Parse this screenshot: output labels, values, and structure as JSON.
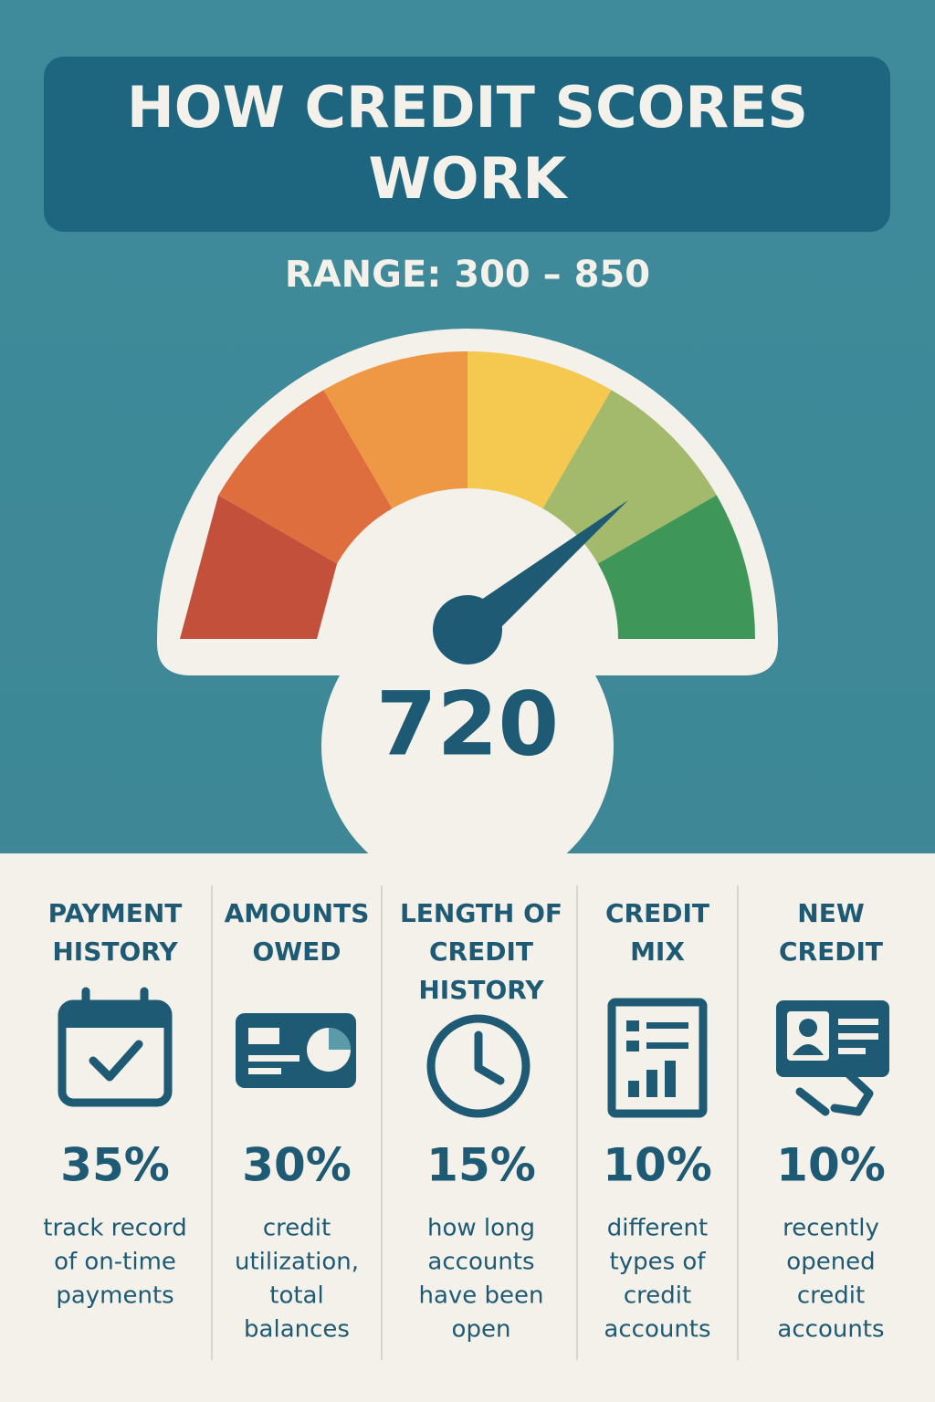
{
  "header": {
    "title": [
      "HOW CREDIT SCORES",
      "WORK"
    ],
    "range": "RANGE: 300 – 850"
  },
  "gauge": {
    "score": "720"
  },
  "factors": [
    {
      "title": [
        "PAYMENT",
        "HISTORY"
      ],
      "percent": "35%",
      "description": [
        "track record",
        "of on-time",
        "payments"
      ]
    },
    {
      "title": [
        "AMOUNTS",
        "OWED"
      ],
      "percent": "30%",
      "description": [
        "credit",
        "utilization,",
        "total",
        "balances"
      ]
    },
    {
      "title": [
        "LENGTH OF",
        "CREDIT",
        "HISTORY"
      ],
      "percent": "15%",
      "description": [
        "how long",
        "accounts",
        "have been",
        "open"
      ]
    },
    {
      "title": [
        "CREDIT",
        "MIX"
      ],
      "percent": "10%",
      "description": [
        "different",
        "types of",
        "credit",
        "accounts"
      ]
    },
    {
      "title": [
        "NEW",
        "CREDIT"
      ],
      "percent": "10%",
      "description": [
        "recently",
        "opened",
        "credit",
        "accounts"
      ]
    }
  ]
}
